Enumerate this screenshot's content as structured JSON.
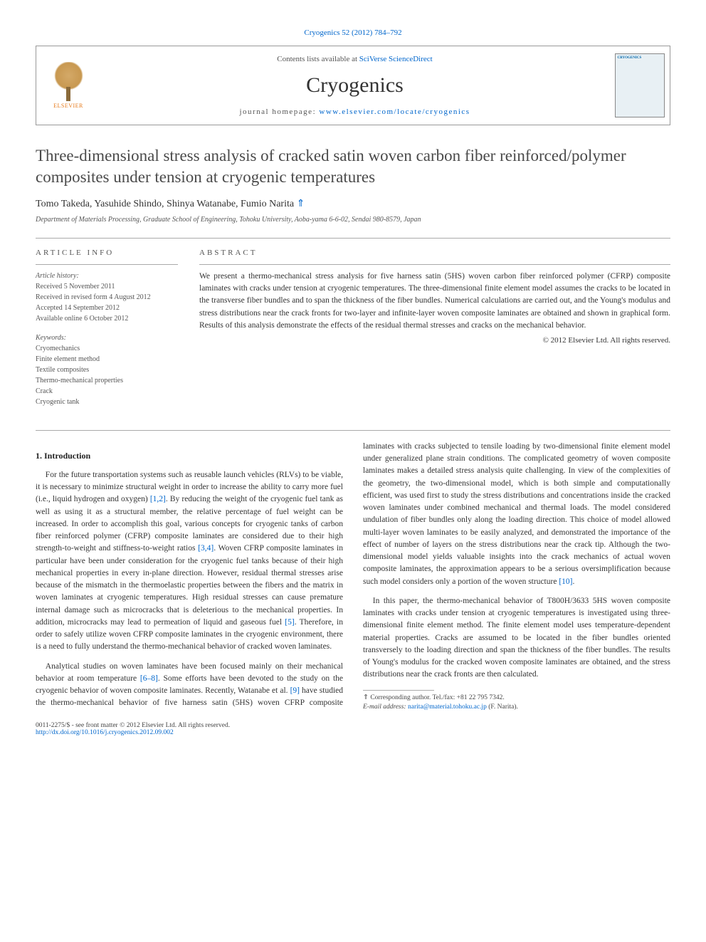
{
  "header": {
    "citation_link": "Cryogenics 52 (2012) 784–792",
    "contents_prefix": "Contents lists available at ",
    "contents_link_text": "SciVerse ScienceDirect",
    "journal_name": "Cryogenics",
    "homepage_prefix": "journal homepage: ",
    "homepage_url": "www.elsevier.com/locate/cryogenics",
    "publisher_logo_text": "ELSEVIER",
    "cover_label": "CRYOGENICS"
  },
  "article": {
    "title": "Three-dimensional stress analysis of cracked satin woven carbon fiber reinforced/polymer composites under tension at cryogenic temperatures",
    "authors": "Tomo Takeda, Yasuhide Shindo, Shinya Watanabe, Fumio Narita",
    "corr_marker": "⇑",
    "affiliation": "Department of Materials Processing, Graduate School of Engineering, Tohoku University, Aoba-yama 6-6-02, Sendai 980-8579, Japan"
  },
  "info": {
    "heading": "article info",
    "history_label": "Article history:",
    "received": "Received 5 November 2011",
    "revised": "Received in revised form 4 August 2012",
    "accepted": "Accepted 14 September 2012",
    "online": "Available online 6 October 2012",
    "keywords_label": "Keywords:",
    "keywords": [
      "Cryomechanics",
      "Finite element method",
      "Textile composites",
      "Thermo-mechanical properties",
      "Crack",
      "Cryogenic tank"
    ]
  },
  "abstract": {
    "heading": "abstract",
    "text": "We present a thermo-mechanical stress analysis for five harness satin (5HS) woven carbon fiber reinforced polymer (CFRP) composite laminates with cracks under tension at cryogenic temperatures. The three-dimensional finite element model assumes the cracks to be located in the transverse fiber bundles and to span the thickness of the fiber bundles. Numerical calculations are carried out, and the Young's modulus and stress distributions near the crack fronts for two-layer and infinite-layer woven composite laminates are obtained and shown in graphical form. Results of this analysis demonstrate the effects of the residual thermal stresses and cracks on the mechanical behavior.",
    "copyright": "© 2012 Elsevier Ltd. All rights reserved."
  },
  "sections": {
    "intro_heading": "1. Introduction",
    "p1a": "For the future transportation systems such as reusable launch vehicles (RLVs) to be viable, it is necessary to minimize structural weight in order to increase the ability to carry more fuel (i.e., liquid hydrogen and oxygen) ",
    "p1_ref1": "[1,2]",
    "p1b": ". By reducing the weight of the cryogenic fuel tank as well as using it as a structural member, the relative percentage of fuel weight can be increased. In order to accomplish this goal, various concepts for cryogenic tanks of carbon fiber reinforced polymer (CFRP) composite laminates are considered due to their high strength-to-weight and stiffness-to-weight ratios ",
    "p1_ref2": "[3,4]",
    "p1c": ". Woven CFRP composite laminates in particular have been under consideration for the cryogenic fuel tanks because of their high mechanical properties in every in-plane direction. However, residual thermal stresses arise because of the mismatch in the thermoelastic properties between the fibers and the matrix in woven laminates at cryogenic temperatures. High residual stresses can cause premature internal damage such as microcracks that is deleterious to the mechanical properties. In addition, microcracks may lead to permeation of liquid and gaseous fuel ",
    "p1_ref3": "[5]",
    "p1d": ". Therefore, in order to safely utilize woven CFRP composite laminates in the cryogenic environment, there is a need to fully understand the thermo-mechanical behavior of cracked woven laminates.",
    "p2a": "Analytical studies on woven laminates have been focused mainly on their mechanical behavior at room temperature ",
    "p2_ref1": "[6–8]",
    "p2b": ". Some efforts have been devoted to the study on the cryogenic behavior of woven composite laminates. Recently, Watanabe et al. ",
    "p2_ref2": "[9]",
    "p2c": " have studied the thermo-mechanical behavior of five harness satin (5HS) woven CFRP composite laminates with cracks subjected to tensile loading by two-dimensional finite element model under generalized plane strain conditions. The complicated geometry of woven composite laminates makes a detailed stress analysis quite challenging. In view of the complexities of the geometry, the two-dimensional model, which is both simple and computationally efficient, was used first to study the stress distributions and concentrations inside the cracked woven laminates under combined mechanical and thermal loads. The model considered undulation of fiber bundles only along the loading direction. This choice of model allowed multi-layer woven laminates to be easily analyzed, and demonstrated the importance of the effect of number of layers on the stress distributions near the crack tip. Although the two-dimensional model yields valuable insights into the crack mechanics of actual woven composite laminates, the approximation appears to be a serious oversimplification because such model considers only a portion of the woven structure ",
    "p2_ref3": "[10]",
    "p2d": ".",
    "p3": "In this paper, the thermo-mechanical behavior of T800H/3633 5HS woven composite laminates with cracks under tension at cryogenic temperatures is investigated using three-dimensional finite element method. The finite element model uses temperature-dependent material properties. Cracks are assumed to be located in the fiber bundles oriented transversely to the loading direction and span the thickness of the fiber bundles. The results of Young's modulus for the cracked woven composite laminates are obtained, and the stress distributions near the crack fronts are then calculated."
  },
  "footnote": {
    "corr_label": "⇑ Corresponding author. Tel./fax: +81 22 795 7342.",
    "email_label": "E-mail address: ",
    "email": "narita@material.tohoku.ac.jp",
    "email_suffix": " (F. Narita)."
  },
  "footer": {
    "issn_line": "0011-2275/$ - see front matter © 2012 Elsevier Ltd. All rights reserved.",
    "doi": "http://dx.doi.org/10.1016/j.cryogenics.2012.09.002"
  },
  "colors": {
    "link": "#0066cc",
    "text": "#333333",
    "heading": "#4a4a4a",
    "orange": "#e67817"
  }
}
